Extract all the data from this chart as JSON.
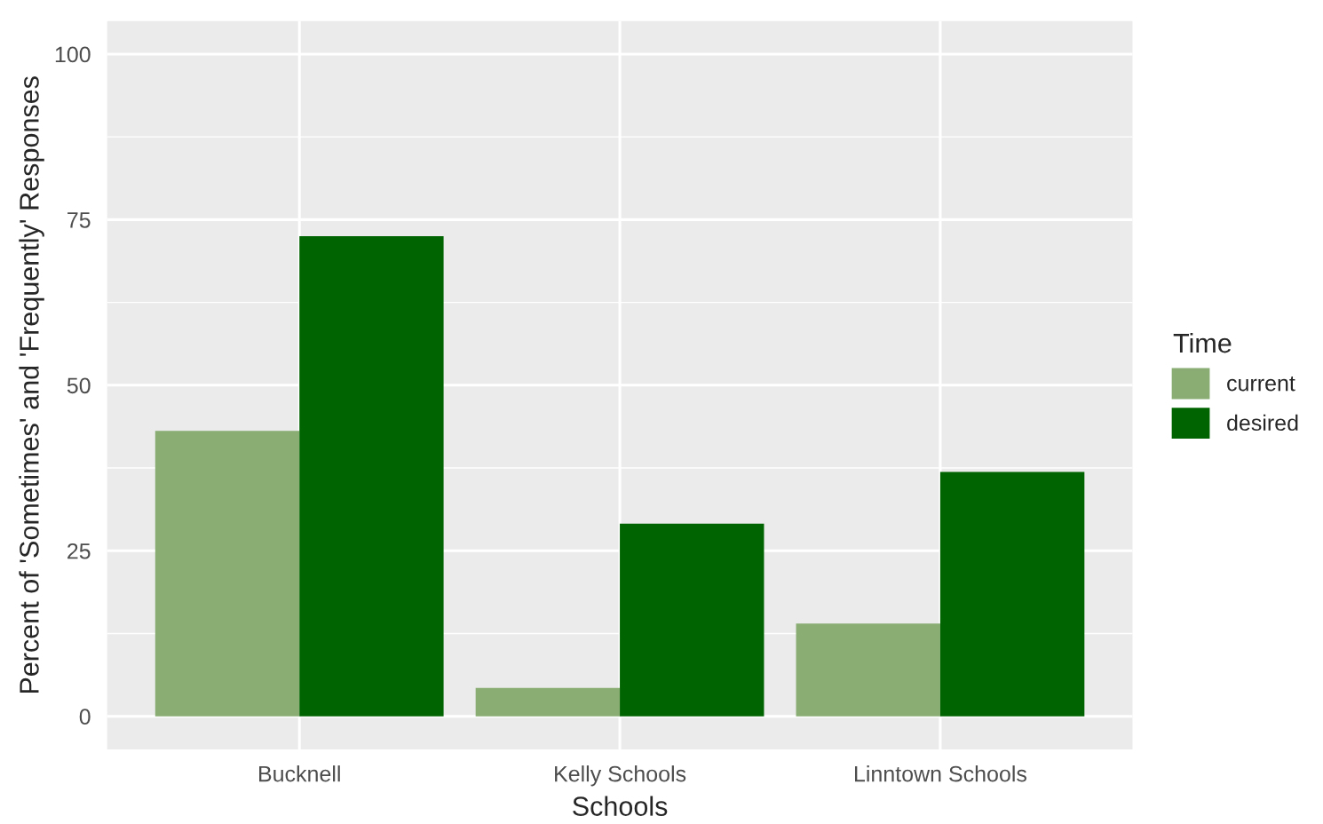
{
  "chart_data": {
    "type": "bar",
    "xlabel": "Schools",
    "ylabel": "Percent of 'Sometimes' and 'Frequently' Responses",
    "categories": [
      "Bucknell",
      "Kelly Schools",
      "Linntown Schools"
    ],
    "series": [
      {
        "name": "current",
        "color": "#8aad74",
        "values": [
          43.1,
          4.3,
          14.0
        ]
      },
      {
        "name": "desired",
        "color": "#006400",
        "values": [
          72.5,
          29.1,
          36.9
        ]
      }
    ],
    "legend_title": "Time",
    "legend": "right",
    "ylim": [
      -5,
      105
    ],
    "yticks": [
      0,
      25,
      50,
      75,
      100
    ],
    "grid": true
  }
}
